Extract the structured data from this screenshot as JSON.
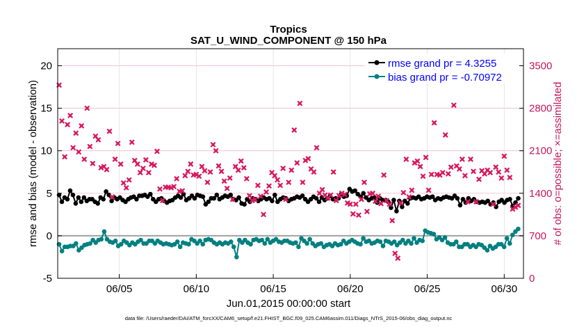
{
  "chart_data": {
    "type": "line",
    "title": "Tropics",
    "subtitle": "SAT_U_WIND_COMPONENT @ 150 hPa",
    "xlabel": "Jun.01,2015 00:00:00 start",
    "ylabel_left": "rmse and bias (model - observation)",
    "ylabel_right": "# of obs: o=possible; ×=assimilated",
    "footnote": "data file: /Users/raeder/DAI/ATM_forcXX/CAM6_setup/f.e21.FHIST_BGC.f09_025.CAM6assim.011/Diags_NTrS_2015-06/obs_diag_output.nc",
    "x_unit": "days since Jun.01,2015 00:00",
    "xlim": [
      0.5,
      30.75
    ],
    "xticks": [
      {
        "x": 4.5,
        "label": "06/05"
      },
      {
        "x": 9.5,
        "label": "06/10"
      },
      {
        "x": 14.5,
        "label": "06/15"
      },
      {
        "x": 19.5,
        "label": "06/20"
      },
      {
        "x": 24.5,
        "label": "06/25"
      },
      {
        "x": 29.5,
        "label": "06/30"
      }
    ],
    "ylim_left": [
      -5,
      22
    ],
    "yticks_left": [
      -5,
      0,
      5,
      10,
      15,
      20
    ],
    "ylim_right": [
      0,
      3780
    ],
    "yticks_right": [
      0,
      700,
      1400,
      2100,
      2800,
      3500
    ],
    "legend_position": "top-right",
    "colors": {
      "rmse": "#000000",
      "bias": "#008080",
      "obs": "#d81b60",
      "zero_line": "#a0a0a0",
      "legend_text": "#0000ff",
      "right_axis": "#c2185b"
    },
    "series": [
      {
        "name": "rmse grand pr = 4.3255",
        "color": "#000000",
        "axis": "left",
        "values": [
          4.8,
          4.0,
          4.5,
          4.3,
          5.3,
          4.8,
          3.8,
          4.5,
          4.0,
          4.5,
          4.1,
          4.3,
          4.3,
          4.0,
          3.8,
          4.5,
          4.3,
          5.2,
          4.8,
          4.1,
          4.5,
          4.3,
          4.5,
          4.2,
          4.0,
          4.3,
          4.5,
          4.6,
          4.3,
          4.7,
          4.7,
          4.8,
          4.6,
          4.9,
          4.3,
          4.0,
          4.3,
          4.4,
          4.1,
          3.9,
          4.1,
          4.2,
          4.5,
          4.7,
          4.5,
          4.9,
          4.2,
          4.4,
          4.7,
          4.4,
          4.8,
          4.7,
          4.6,
          3.7,
          4.0,
          4.4,
          4.4,
          4.8,
          4.3,
          4.5,
          4.7,
          4.6,
          4.8,
          4.3,
          4.2,
          4.5,
          3.8,
          3.7,
          4.3,
          4.0,
          4.4,
          4.3,
          4.1,
          4.3,
          4.5,
          4.3,
          4.4,
          4.1,
          4.8,
          4.0,
          4.3,
          4.5,
          4.4,
          4.1,
          4.3,
          4.4,
          4.6,
          4.5,
          4.7,
          4.3,
          4.0,
          4.3,
          4.6,
          4.4,
          4.0,
          4.5,
          4.2,
          4.4,
          4.7,
          4.3,
          4.4,
          4.4,
          4.9,
          4.6,
          4.7,
          5.5,
          5.2,
          5.3,
          4.9,
          4.6,
          5.0,
          4.5,
          4.2,
          4.4,
          4.5,
          3.9,
          4.4,
          4.2,
          4.2,
          4.0,
          3.3,
          4.2,
          2.9,
          4.1,
          3.4,
          4.1,
          3.8,
          4.4,
          4.5,
          4.4,
          4.6,
          4.3,
          4.4,
          4.6,
          4.5,
          4.6,
          4.2,
          4.4,
          4.3,
          4.5,
          4.6,
          4.5,
          4.4,
          4.7,
          4.4,
          3.6,
          4.3,
          3.9,
          4.4,
          4.1,
          4.3,
          4.0,
          3.9,
          4.0,
          3.9,
          4.1,
          3.7,
          3.9,
          3.4,
          4.0,
          4.2,
          3.9,
          4.2,
          4.3,
          3.5,
          3.9,
          4.4
        ]
      },
      {
        "name": "bias grand pr = -0.70972",
        "color": "#008080",
        "axis": "left",
        "values": [
          -1.0,
          -1.8,
          -1.3,
          -1.3,
          -1.2,
          -1.2,
          -0.9,
          -1.7,
          -1.4,
          -1.1,
          -1.0,
          -0.9,
          -0.5,
          -0.8,
          -0.5,
          -0.4,
          0.5,
          -0.4,
          -0.7,
          -0.8,
          -0.6,
          -1.2,
          -1.0,
          -0.6,
          -0.8,
          -1.1,
          -0.8,
          -1.0,
          -0.7,
          -0.5,
          -0.9,
          -0.9,
          -0.6,
          -0.6,
          -0.9,
          -0.6,
          -0.8,
          -1.0,
          -0.9,
          -1.0,
          -1.1,
          -1.0,
          -0.7,
          -1.3,
          -0.8,
          -0.9,
          -1.0,
          -0.4,
          -0.6,
          -0.9,
          -0.6,
          -1.0,
          -0.5,
          -0.4,
          -0.5,
          -0.8,
          -1.0,
          -0.8,
          -1.0,
          -0.8,
          -0.9,
          -0.7,
          -1.3,
          -2.5,
          -0.5,
          -0.8,
          -0.5,
          -0.8,
          -1.0,
          -0.5,
          -0.4,
          -0.6,
          -0.5,
          -0.9,
          -0.4,
          -0.8,
          -0.6,
          -0.4,
          -0.7,
          -0.8,
          -0.6,
          -0.6,
          -0.8,
          -0.9,
          -0.8,
          -1.3,
          -0.3,
          -0.6,
          -0.9,
          -0.4,
          -0.9,
          -1.2,
          -1.0,
          -0.9,
          -1.3,
          -1.1,
          -1.0,
          -1.2,
          -0.9,
          -1.1,
          -1.0,
          -0.6,
          -0.9,
          -0.7,
          -0.5,
          -0.7,
          -0.9,
          -1.0,
          -0.3,
          -0.7,
          -0.6,
          -0.9,
          -0.8,
          -0.6,
          -0.7,
          -1.2,
          -0.6,
          -0.7,
          -0.9,
          -0.7,
          -1.1,
          -0.8,
          -0.5,
          -0.9,
          -0.6,
          -0.9,
          -0.3,
          -0.8,
          -0.5,
          -0.6,
          0.6,
          0.4,
          0.3,
          0.2,
          -0.4,
          -0.2,
          -0.5,
          -0.2,
          -0.8,
          -1.0,
          -1.0,
          -0.7,
          -1.3,
          -1.3,
          -1.0,
          -1.0,
          -1.3,
          -1.1,
          -1.3,
          -1.0,
          -1.1,
          -1.4,
          -1.7,
          -1.2,
          -1.5,
          -1.3,
          -1.0,
          -1.0,
          -1.3,
          -0.3,
          -0.9,
          0.1,
          0.5,
          0.8
        ]
      },
      {
        "name": "obs assimilated",
        "color": "#d81b60",
        "axis": "right",
        "marker": "x",
        "values": [
          3180,
          2590,
          2000,
          2530,
          2680,
          2150,
          2390,
          2080,
          2510,
          1960,
          2800,
          2170,
          1890,
          2340,
          2280,
          1820,
          1840,
          1790,
          2420,
          1340,
          1960,
          2220,
          1880,
          1570,
          1490,
          1620,
          2240,
          1940,
          1880,
          1740,
          1810,
          1950,
          1740,
          1880,
          1860,
          2090,
          1470,
          1280,
          1500,
          1500,
          1490,
          1510,
          1640,
          1430,
          1440,
          1690,
          1760,
          1880,
          1700,
          1710,
          1680,
          1840,
          1770,
          1580,
          1750,
          2200,
          2100,
          1850,
          1760,
          1600,
          1480,
          1650,
          1300,
          1840,
          1780,
          1930,
          1820,
          1640,
          1360,
          1280,
          1300,
          1530,
          1350,
          1050,
          1420,
          1520,
          1740,
          1690,
          1620,
          1530,
          1810,
          1300,
          1580,
          1780,
          2440,
          1900,
          2880,
          1580,
          1940,
          1970,
          1800,
          1750,
          2150,
          1400,
          1460,
          1370,
          1320,
          1370,
          1750,
          1280,
          1360,
          1400,
          1380,
          1240,
          1220,
          1060,
          1220,
          1040,
          1300,
          1580,
          1100,
          1390,
          1400,
          1270,
          1350,
          1230,
          1700,
          1280,
          1220,
          950,
          410,
          330,
          1240,
          1410,
          1960,
          1340,
          1450,
          1900,
          1930,
          1840,
          1680,
          1990,
          1450,
          1710,
          2560,
          1710,
          1700,
          1740,
          2360,
          1720,
          1830,
          2850,
          1850,
          1800,
          1960,
          1690,
          1260,
          1960,
          1760,
          1260,
          1630,
          1770,
          1720,
          1780,
          1740,
          1220,
          1830,
          1750,
          1650,
          2010,
          1780,
          1660,
          1140,
          1170,
          1200
        ]
      }
    ]
  }
}
